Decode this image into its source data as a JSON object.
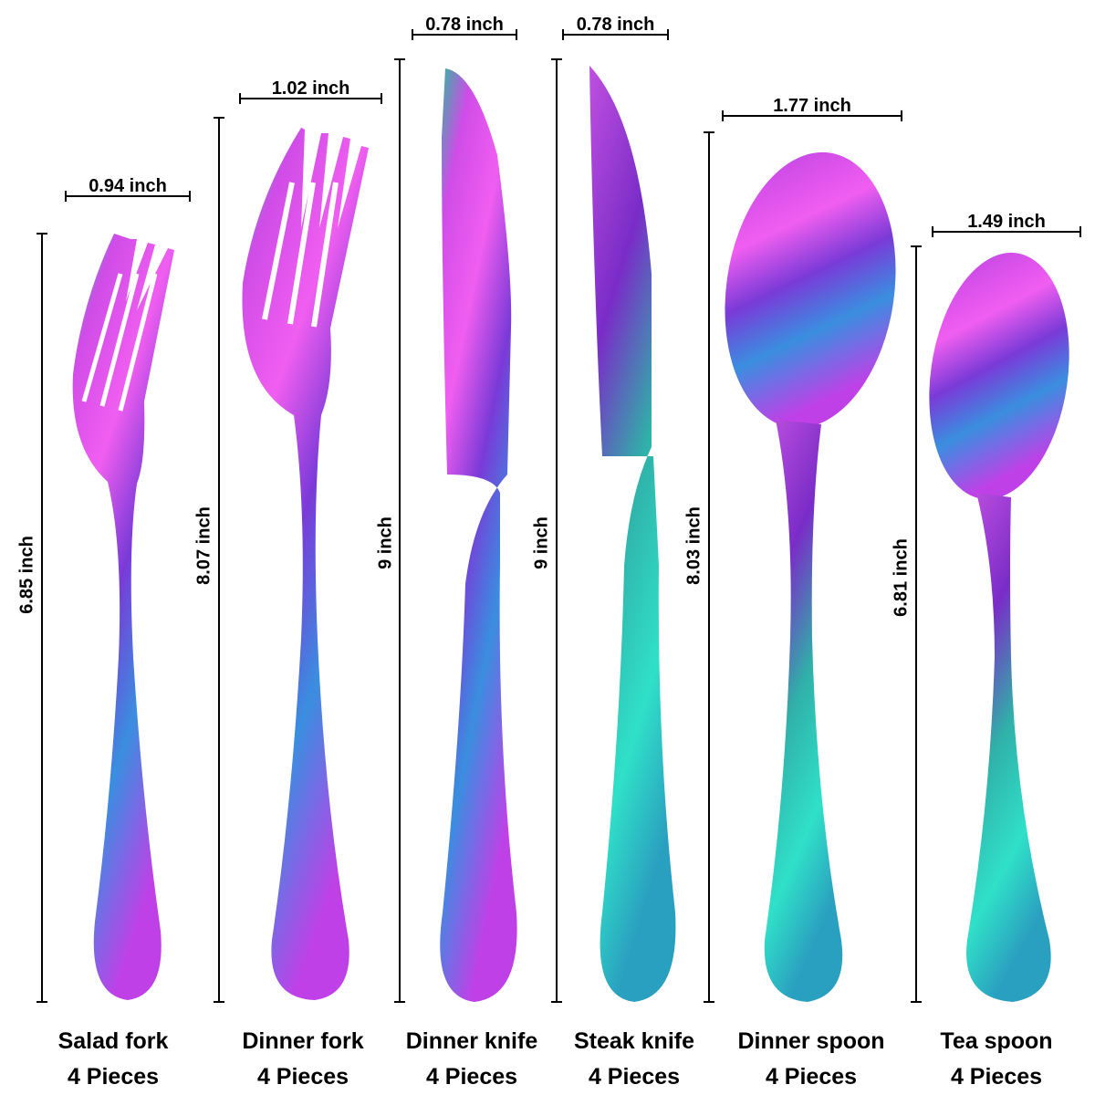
{
  "items": [
    {
      "width": "0.94 inch",
      "length": "6.85 inch",
      "name": "Salad fork",
      "count": "4 Pieces"
    },
    {
      "width": "1.02 inch",
      "length": "8.07 inch",
      "name": "Dinner fork",
      "count": "4 Pieces"
    },
    {
      "width": "0.78 inch",
      "length": "9 inch",
      "name": "Dinner knife",
      "count": "4 Pieces"
    },
    {
      "width": "0.78 inch",
      "length": "9 inch",
      "name": "Steak knife",
      "count": "4 Pieces"
    },
    {
      "width": "1.77 inch",
      "length": "8.03 inch",
      "name": "Dinner spoon",
      "count": "4 Pieces"
    },
    {
      "width": "1.49 inch",
      "length": "6.81 inch",
      "name": "Tea spoon",
      "count": "4 Pieces"
    }
  ]
}
